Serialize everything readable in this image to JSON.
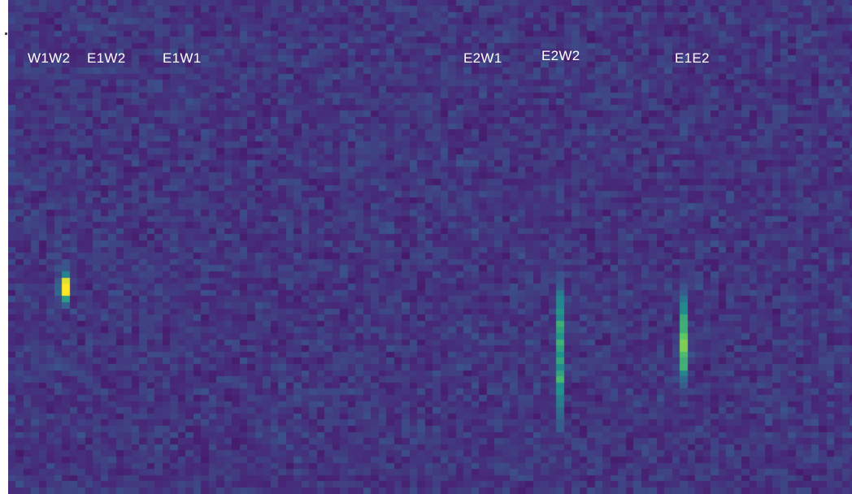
{
  "chart_data": {
    "type": "heatmap",
    "title": "",
    "xlabel": "",
    "ylabel": "",
    "colormap": "viridis",
    "background_level": 0.2,
    "noise_level": 0.07,
    "baseline_labels": [
      "W1W2",
      "E1W2",
      "E1W1",
      "E2W1",
      "E2W2",
      "E1E2"
    ],
    "features": [
      {
        "name": "W1W2",
        "shape": "blob",
        "peak_value": 1.0
      },
      {
        "name": "E2W2",
        "shape": "vertical-streak",
        "peak_value": 0.45
      },
      {
        "name": "E1E2",
        "shape": "vertical-streak",
        "peak_value": 0.5
      }
    ]
  },
  "colors": {
    "low": "#3b1f6e",
    "mid": "#2f6f8e",
    "high": "#fde725"
  }
}
